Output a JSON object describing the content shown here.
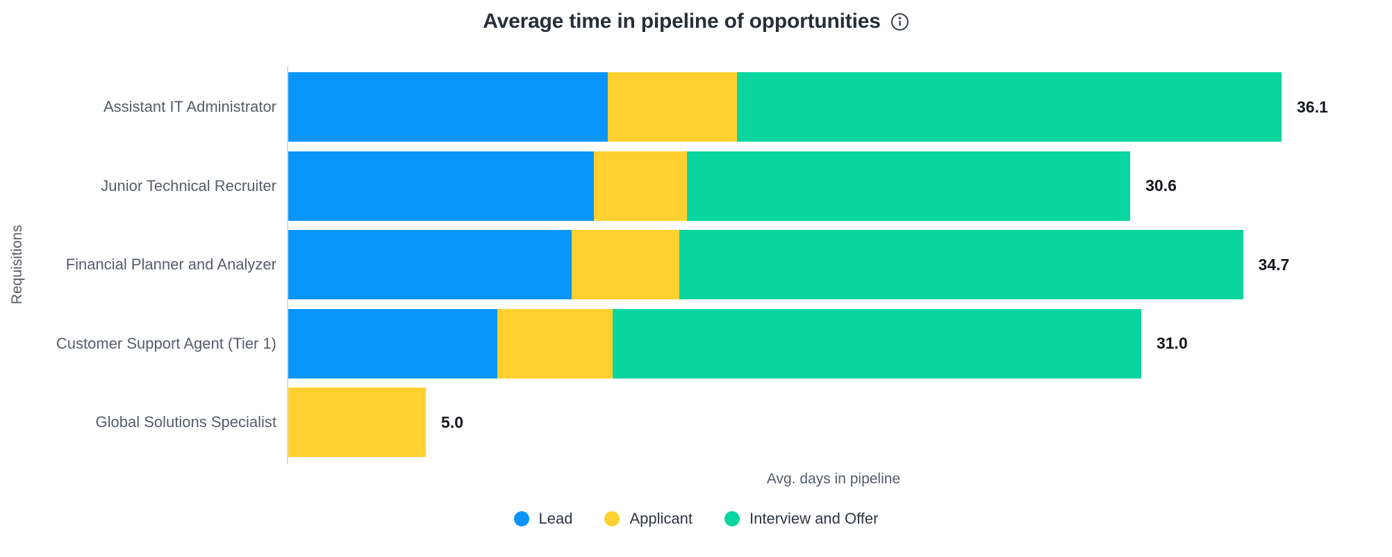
{
  "title": "Average time in pipeline of opportunities",
  "icons": {
    "info": "info-icon"
  },
  "chart_data": {
    "type": "bar",
    "orientation": "horizontal",
    "stacked": true,
    "title": "Average time in pipeline of opportunities",
    "xlabel": "Avg. days in pipeline",
    "ylabel": "Requisitions",
    "xmax": 36.1,
    "grid": false,
    "legend_position": "bottom",
    "categories": [
      "Assistant IT Administrator",
      "Junior Technical Recruiter",
      "Financial Planner and Analyzer",
      "Customer Support Agent (Tier 1)",
      "Global Solutions Specialist"
    ],
    "series": [
      {
        "name": "Lead",
        "color": "#0995FA",
        "values": [
          11.6,
          11.1,
          10.3,
          7.6,
          0
        ]
      },
      {
        "name": "Applicant",
        "color": "#FFD030",
        "values": [
          4.7,
          3.4,
          3.9,
          4.2,
          5.0
        ]
      },
      {
        "name": "Interview and Offer",
        "color": "#09D59E",
        "values": [
          19.8,
          16.1,
          20.5,
          19.2,
          0
        ]
      }
    ],
    "totals": [
      "36.1",
      "30.6",
      "34.7",
      "31.0",
      "5.0"
    ]
  }
}
